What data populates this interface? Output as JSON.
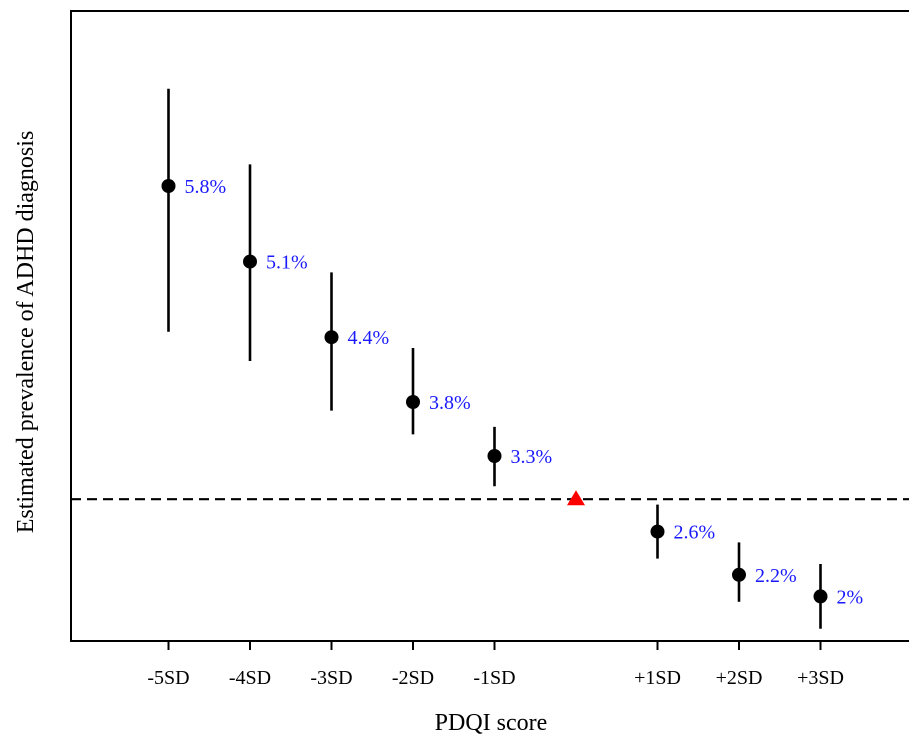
{
  "chart_data": {
    "type": "scatter",
    "title": "",
    "xlabel": "PDQI score",
    "ylabel": "Estimated prevalence of ADHD diagnosis",
    "ylim": [
      1.5,
      6.85
    ],
    "x_tick_labels": [
      "-5SD",
      "-4SD",
      "-3SD",
      "-2SD",
      "-1SD",
      "+1SD",
      "+2SD",
      "+3SD"
    ],
    "points": [
      {
        "x": -5,
        "tick": "-5SD",
        "y": 5.8,
        "label": "5.8%",
        "ci_low": 4.45,
        "ci_high": 6.7
      },
      {
        "x": -4,
        "tick": "-4SD",
        "y": 5.1,
        "label": "5.1%",
        "ci_low": 4.18,
        "ci_high": 6.0
      },
      {
        "x": -3,
        "tick": "-3SD",
        "y": 4.4,
        "label": "4.4%",
        "ci_low": 3.72,
        "ci_high": 5.0
      },
      {
        "x": -2,
        "tick": "-2SD",
        "y": 3.8,
        "label": "3.8%",
        "ci_low": 3.5,
        "ci_high": 4.3
      },
      {
        "x": -1,
        "tick": "-1SD",
        "y": 3.3,
        "label": "3.3%",
        "ci_low": 3.02,
        "ci_high": 3.57
      },
      {
        "x": 1,
        "tick": "+1SD",
        "y": 2.6,
        "label": "2.6%",
        "ci_low": 2.35,
        "ci_high": 2.85
      },
      {
        "x": 2,
        "tick": "+2SD",
        "y": 2.2,
        "label": "2.2%",
        "ci_low": 1.95,
        "ci_high": 2.5
      },
      {
        "x": 3,
        "tick": "+3SD",
        "y": 2.0,
        "label": "2%",
        "ci_low": 1.7,
        "ci_high": 2.3
      }
    ],
    "reference": {
      "x": 0,
      "y": 2.9,
      "marker": "triangle",
      "color": "#ff0000"
    },
    "reference_line": {
      "y": 2.9,
      "style": "dashed"
    },
    "colors": {
      "points": "#000000",
      "labels": "#1a1aff",
      "reference": "#ff0000",
      "axis": "#000000"
    },
    "grid": false,
    "legend": "none"
  }
}
